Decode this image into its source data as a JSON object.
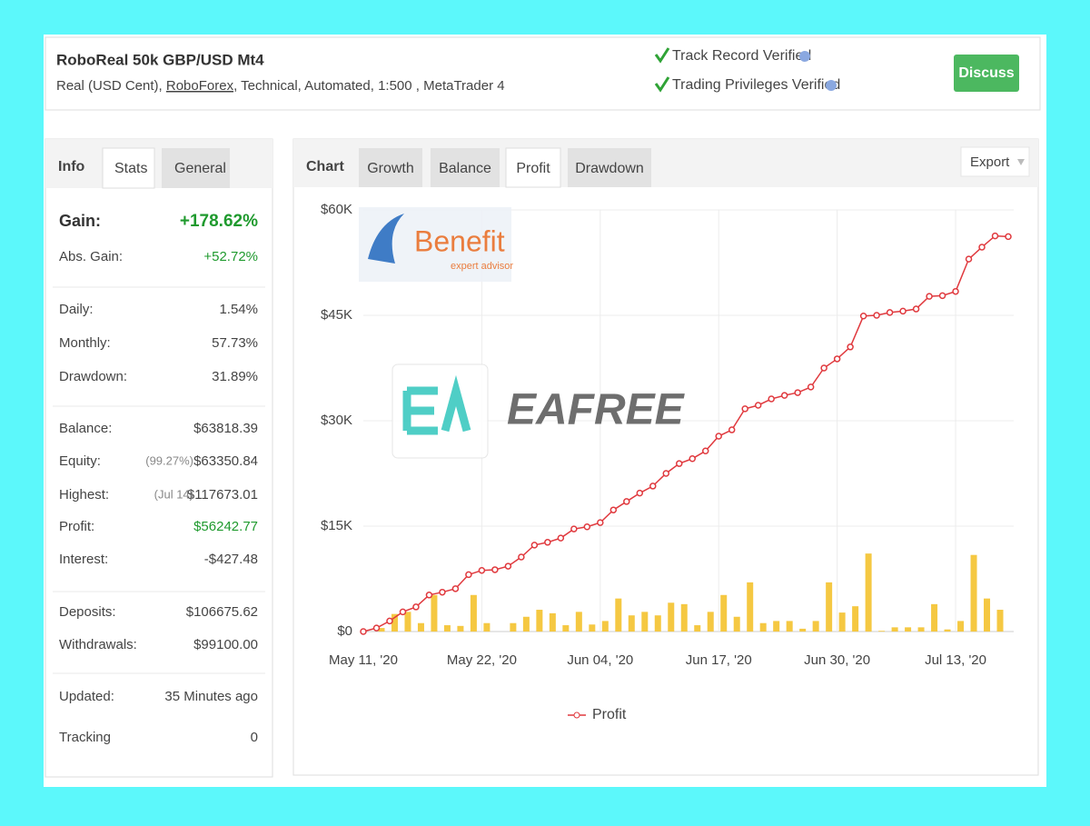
{
  "header": {
    "title": "RoboReal 50k GBP/USD Mt4",
    "subtitle_prefix": "Real (USD Cent), ",
    "broker": "RoboForex",
    "subtitle_suffix": ", Technical, Automated, 1:500 , MetaTrader 4",
    "verified": [
      "Track Record Verified",
      "Trading Privileges Verified"
    ],
    "button": "Discuss"
  },
  "info": {
    "tabs": [
      "Info",
      "Stats",
      "General"
    ],
    "groups": [
      [
        {
          "label": "Gain:",
          "value": "+178.62%",
          "color": "#1f9a2e",
          "bold": true
        },
        {
          "label": "Abs. Gain:",
          "value": "+52.72%",
          "color": "#1f9a2e"
        }
      ],
      [
        {
          "label": "Daily:",
          "value": "1.54%"
        },
        {
          "label": "Monthly:",
          "value": "57.73%"
        },
        {
          "label": "Drawdown:",
          "value": "31.89%"
        }
      ],
      [
        {
          "label": "Balance:",
          "value": "$63818.39"
        },
        {
          "label": "Equity:",
          "note": "(99.27%)",
          "value": "$63350.84"
        },
        {
          "label": "Highest:",
          "note": "(Jul 14)",
          "value": "$117673.01"
        },
        {
          "label": "Profit:",
          "value": "$56242.77",
          "color": "#1f9a2e"
        },
        {
          "label": "Interest:",
          "value": "-$427.48"
        }
      ],
      [
        {
          "label": "Deposits:",
          "value": "$106675.62"
        },
        {
          "label": "Withdrawals:",
          "value": "$99100.00"
        }
      ],
      [
        {
          "label": "Updated:",
          "value": "35 Minutes ago"
        },
        {
          "label": "Tracking",
          "value": "0"
        }
      ]
    ]
  },
  "chart_tabs": [
    "Chart",
    "Growth",
    "Balance",
    "Profit",
    "Drawdown"
  ],
  "export": "Export",
  "watermarks": [
    "Benefit",
    "expert advisor",
    "EAFREE"
  ],
  "chart_data": {
    "type": "line",
    "categories": [
      "May 11, '20",
      null,
      null,
      null,
      null,
      null,
      null,
      null,
      null,
      "May 22, '20",
      null,
      null,
      null,
      null,
      null,
      null,
      null,
      null,
      "Jun 04, '20",
      null,
      null,
      null,
      null,
      null,
      null,
      null,
      null,
      "Jun 17, '20",
      null,
      null,
      null,
      null,
      null,
      null,
      null,
      null,
      "Jun 30, '20",
      null,
      null,
      null,
      null,
      null,
      null,
      null,
      null,
      "Jul 13, '20",
      null,
      null,
      null,
      null
    ],
    "series": [
      {
        "name": "Profit",
        "type": "line",
        "color": "#e0393e",
        "values": [
          0,
          500,
          1500,
          2800,
          3500,
          5200,
          5600,
          6100,
          8100,
          8700,
          8800,
          9300,
          10600,
          12300,
          12700,
          13300,
          14600,
          14900,
          15500,
          17300,
          18500,
          19700,
          20700,
          22500,
          23900,
          24600,
          25700,
          27800,
          28700,
          31700,
          32200,
          33100,
          33600,
          34000,
          34800,
          37500,
          38800,
          40500,
          44900,
          45000,
          45400,
          45600,
          45900,
          47700,
          47800,
          48400,
          53000,
          54700,
          56300,
          56200
        ]
      },
      {
        "type": "bar",
        "color": "#f5c842",
        "values": [
          0,
          500,
          2500,
          2800,
          1200,
          5200,
          900,
          800,
          5200,
          1200,
          0,
          1200,
          2100,
          3100,
          2600,
          900,
          2800,
          1000,
          1500,
          4700,
          2300,
          2800,
          2300,
          4100,
          3900,
          900,
          2800,
          5200,
          2100,
          7000,
          1200,
          1500,
          1500,
          400,
          1500,
          7000,
          2700,
          3600,
          11100,
          100,
          600,
          600,
          600,
          3900,
          300,
          1500,
          10900,
          4700,
          3100,
          0
        ]
      }
    ],
    "ylim": [
      0,
      60000
    ],
    "yticks": [
      {
        "value": 0,
        "label": "$0"
      },
      {
        "value": 15000,
        "label": "$15K"
      },
      {
        "value": 30000,
        "label": "$30K"
      },
      {
        "value": 45000,
        "label": "$45K"
      },
      {
        "value": 60000,
        "label": "$60K"
      }
    ],
    "grid": true,
    "legend": "bottom"
  }
}
